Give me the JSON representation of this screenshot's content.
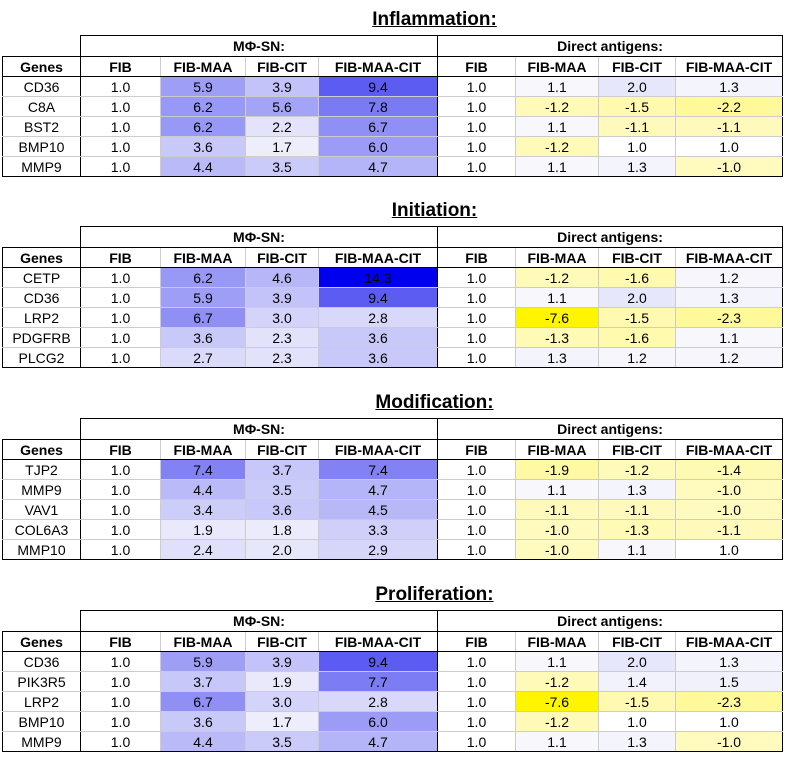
{
  "group_headers": [
    "MΦ-SN:",
    "Direct antigens:"
  ],
  "column_headers": [
    "Genes",
    "FIB",
    "FIB-MAA",
    "FIB-CIT",
    "FIB-MAA-CIT",
    "FIB",
    "FIB-MAA",
    "FIB-CIT",
    "FIB-MAA-CIT"
  ],
  "colors": {
    "positive_max": "#0000ee",
    "negative_max": "#ffff00"
  },
  "sections": [
    {
      "title": "Inflammation:",
      "rows": [
        [
          "CD36",
          "1.0",
          "5.9",
          "3.9",
          "9.4",
          "1.0",
          "1.1",
          "2.0",
          "1.3"
        ],
        [
          "C8A",
          "1.0",
          "6.2",
          "5.6",
          "7.8",
          "1.0",
          "-1.2",
          "-1.5",
          "-2.2"
        ],
        [
          "BST2",
          "1.0",
          "6.2",
          "2.2",
          "6.7",
          "1.0",
          "1.1",
          "-1.1",
          "-1.1"
        ],
        [
          "BMP10",
          "1.0",
          "3.6",
          "1.7",
          "6.0",
          "1.0",
          "-1.2",
          "1.0",
          "1.0"
        ],
        [
          "MMP9",
          "1.0",
          "4.4",
          "3.5",
          "4.7",
          "1.0",
          "1.1",
          "1.3",
          "-1.0"
        ]
      ]
    },
    {
      "title": "Initiation:",
      "rows": [
        [
          "CETP",
          "1.0",
          "6.2",
          "4.6",
          "14.3",
          "1.0",
          "-1.2",
          "-1.6",
          "1.2"
        ],
        [
          "CD36",
          "1.0",
          "5.9",
          "3.9",
          "9.4",
          "1.0",
          "1.1",
          "2.0",
          "1.3"
        ],
        [
          "LRP2",
          "1.0",
          "6.7",
          "3.0",
          "2.8",
          "1.0",
          "-7.6",
          "-1.5",
          "-2.3"
        ],
        [
          "PDGFRB",
          "1.0",
          "3.6",
          "2.3",
          "3.6",
          "1.0",
          "-1.3",
          "-1.6",
          "1.1"
        ],
        [
          "PLCG2",
          "1.0",
          "2.7",
          "2.3",
          "3.6",
          "1.0",
          "1.3",
          "1.2",
          "1.2"
        ]
      ]
    },
    {
      "title": "Modification:",
      "rows": [
        [
          "TJP2",
          "1.0",
          "7.4",
          "3.7",
          "7.4",
          "1.0",
          "-1.9",
          "-1.2",
          "-1.4"
        ],
        [
          "MMP9",
          "1.0",
          "4.4",
          "3.5",
          "4.7",
          "1.0",
          "1.1",
          "1.3",
          "-1.0"
        ],
        [
          "VAV1",
          "1.0",
          "3.4",
          "3.6",
          "4.5",
          "1.0",
          "-1.1",
          "-1.1",
          "-1.0"
        ],
        [
          "COL6A3",
          "1.0",
          "1.9",
          "1.8",
          "3.3",
          "1.0",
          "-1.0",
          "-1.3",
          "-1.1"
        ],
        [
          "MMP10",
          "1.0",
          "2.4",
          "2.0",
          "2.9",
          "1.0",
          "-1.0",
          "1.1",
          "1.0"
        ]
      ]
    },
    {
      "title": "Proliferation:",
      "rows": [
        [
          "CD36",
          "1.0",
          "5.9",
          "3.9",
          "9.4",
          "1.0",
          "1.1",
          "2.0",
          "1.3"
        ],
        [
          "PIK3R5",
          "1.0",
          "3.7",
          "1.9",
          "7.7",
          "1.0",
          "-1.2",
          "1.4",
          "1.5"
        ],
        [
          "LRP2",
          "1.0",
          "6.7",
          "3.0",
          "2.8",
          "1.0",
          "-7.6",
          "-1.5",
          "-2.3"
        ],
        [
          "BMP10",
          "1.0",
          "3.6",
          "1.7",
          "6.0",
          "1.0",
          "-1.2",
          "1.0",
          "1.0"
        ],
        [
          "MMP9",
          "1.0",
          "4.4",
          "3.5",
          "4.7",
          "1.0",
          "1.1",
          "1.3",
          "-1.0"
        ]
      ]
    }
  ]
}
